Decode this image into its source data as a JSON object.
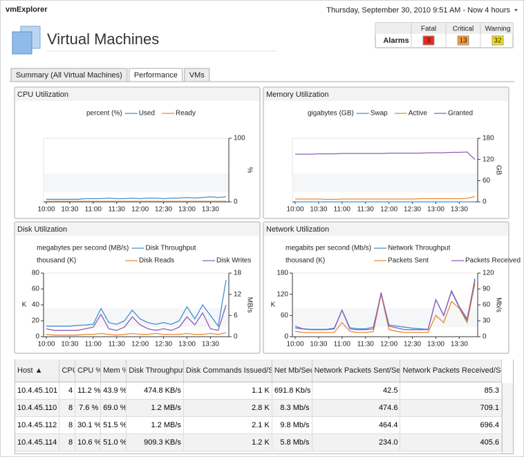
{
  "header": {
    "app": "vmExplorer",
    "timeframe": "Thursday, September 30, 2010 9:51 AM - Now 4 hours",
    "title": "Virtual Machines"
  },
  "alarms": {
    "label": "Alarms",
    "columns": [
      "Fatal",
      "Critical",
      "Warning"
    ],
    "values": [
      "3",
      "13",
      "32"
    ],
    "colors": [
      "#e8281e",
      "#f59a35",
      "#f5e00a"
    ]
  },
  "tabs": [
    "Summary (All Virtual Machines)",
    "Performance",
    "VMs"
  ],
  "chart_data": [
    {
      "type": "line",
      "title": "CPU Utilization",
      "y_label": "percent (%)",
      "y_axis_label": "%",
      "y_axis_side": "right",
      "categories": [
        "10:00",
        null,
        null,
        "10:30",
        null,
        null,
        "11:00",
        null,
        null,
        "11:30",
        null,
        null,
        "12:00",
        null,
        null,
        "12:30",
        null,
        null,
        "13:00",
        null,
        null,
        "13:30",
        null,
        null
      ],
      "ylim": [
        0,
        100
      ],
      "yticks": [
        0,
        100
      ],
      "series": [
        {
          "name": "Used",
          "color": "#3d8fd1",
          "values": [
            4,
            4,
            4,
            4,
            4,
            5,
            5,
            5,
            6,
            5,
            5,
            6,
            5,
            6,
            6,
            5,
            6,
            6,
            7,
            6,
            7,
            8,
            7,
            8
          ]
        },
        {
          "name": "Ready",
          "color": "#e8892f",
          "values": [
            1,
            1,
            1,
            1,
            1,
            1,
            1,
            1,
            1,
            1,
            1,
            1,
            1,
            1,
            1,
            1,
            1,
            1,
            1,
            1,
            1,
            1,
            1,
            1
          ]
        }
      ]
    },
    {
      "type": "line",
      "title": "Memory Utilization",
      "y_label": "gigabytes (GB)",
      "y_axis_label": "GB",
      "y_axis_side": "right",
      "categories": [
        "10:00",
        null,
        null,
        "10:30",
        null,
        null,
        "11:00",
        null,
        null,
        "11:30",
        null,
        null,
        "12:00",
        null,
        null,
        "12:30",
        null,
        null,
        "13:00",
        null,
        null,
        "13:30",
        null,
        null
      ],
      "ylim": [
        0,
        180
      ],
      "yticks": [
        0,
        60,
        120,
        180
      ],
      "series": [
        {
          "name": "Swap",
          "color": "#3d8fd1",
          "values": [
            0,
            0,
            0,
            0,
            0,
            0,
            0,
            0,
            0,
            0,
            0,
            0,
            0,
            0,
            0,
            0,
            0,
            0,
            0,
            0,
            0,
            0,
            0,
            0
          ]
        },
        {
          "name": "Active",
          "color": "#e8892f",
          "values": [
            8,
            8,
            8,
            8,
            7,
            7,
            8,
            8,
            8,
            8,
            8,
            8,
            8,
            8,
            8,
            8,
            9,
            9,
            9,
            9,
            9,
            9,
            10,
            15
          ]
        },
        {
          "name": "Granted",
          "color": "#8e5bb8",
          "values": [
            135,
            135,
            135,
            136,
            136,
            136,
            137,
            137,
            137,
            137,
            137,
            137,
            138,
            138,
            138,
            138,
            138,
            139,
            139,
            139,
            140,
            140,
            141,
            120
          ]
        }
      ]
    },
    {
      "type": "line",
      "title": "Disk Utilization",
      "y_label": "thousand (K)",
      "y2_label": "megabytes per second (MB/s)",
      "y_axis_label": "K",
      "y2_axis_label": "MB/s",
      "categories": [
        "10:00",
        null,
        null,
        "10:30",
        null,
        null,
        "11:00",
        null,
        null,
        "11:30",
        null,
        null,
        "12:00",
        null,
        null,
        "12:30",
        null,
        null,
        "13:00",
        null,
        null,
        "13:30",
        null,
        null
      ],
      "ylim": [
        0,
        80
      ],
      "yticks": [
        0,
        20,
        40,
        60,
        80
      ],
      "y2lim": [
        0,
        18
      ],
      "y2ticks": [
        0,
        6,
        12,
        18
      ],
      "series": [
        {
          "name": "Disk Throughput",
          "color": "#3d8fd1",
          "axis": "y2",
          "values": [
            3,
            3,
            3,
            3,
            3.2,
            3.3,
            3.5,
            8,
            4,
            3.5,
            4.5,
            7.5,
            5,
            4,
            3.5,
            4,
            3.5,
            4.5,
            8.5,
            5,
            9,
            6,
            3,
            16
          ]
        },
        {
          "name": "Disk Reads",
          "color": "#e8892f",
          "values": [
            3,
            2,
            2,
            2,
            2,
            3,
            3,
            4,
            3,
            2,
            3,
            4,
            3,
            3,
            4,
            3,
            3,
            3,
            4,
            3,
            3,
            4,
            3,
            5
          ]
        },
        {
          "name": "Disk Writes",
          "color": "#8e5bb8",
          "values": [
            10,
            8,
            8,
            8,
            8,
            10,
            12,
            28,
            10,
            8,
            12,
            25,
            15,
            10,
            8,
            10,
            8,
            12,
            25,
            15,
            30,
            10,
            8,
            40
          ]
        }
      ]
    },
    {
      "type": "line",
      "title": "Network Utilization",
      "y_label": "thousand (K)",
      "y2_label": "megabits per second (Mb/s)",
      "y_axis_label": "K",
      "y2_axis_label": "Mb/s",
      "categories": [
        "10:00",
        null,
        null,
        "10:30",
        null,
        null,
        "11:00",
        null,
        null,
        "11:30",
        null,
        null,
        "12:00",
        null,
        null,
        "12:30",
        null,
        null,
        "13:00",
        null,
        null,
        "13:30",
        null,
        null
      ],
      "ylim": [
        0,
        180
      ],
      "yticks": [
        0,
        60,
        120,
        180
      ],
      "y2lim": [
        0,
        120
      ],
      "y2ticks": [
        0,
        30,
        60,
        90,
        120
      ],
      "series": [
        {
          "name": "Network Throughput",
          "color": "#3d8fd1",
          "axis": "y2",
          "values": [
            20,
            15,
            14,
            14,
            14,
            16,
            50,
            17,
            15,
            15,
            18,
            80,
            22,
            20,
            18,
            16,
            15,
            14,
            70,
            40,
            85,
            55,
            30,
            110
          ]
        },
        {
          "name": "Packets Sent",
          "color": "#e8892f",
          "values": [
            15,
            12,
            12,
            12,
            12,
            12,
            40,
            15,
            12,
            12,
            14,
            120,
            20,
            15,
            12,
            12,
            12,
            12,
            60,
            40,
            100,
            80,
            40,
            150
          ]
        },
        {
          "name": "Packets Received",
          "color": "#8e5bb8",
          "values": [
            25,
            22,
            20,
            20,
            20,
            22,
            75,
            22,
            20,
            20,
            22,
            125,
            30,
            25,
            20,
            20,
            20,
            20,
            105,
            60,
            130,
            85,
            50,
            160
          ]
        }
      ]
    }
  ],
  "table": {
    "columns": [
      "Host ▲",
      "CPU #",
      "CPU %",
      "Mem %",
      "Disk Throughput",
      "Disk Commands Issued/Sec",
      "Net Mb/Sec",
      "Network Packets Sent/Sec",
      "Network Packets Received/Sec"
    ],
    "rows": [
      [
        "10.4.45.101",
        "4",
        "11.2 %",
        "43.9 %",
        "474.8 KB/s",
        "1.1 K",
        "691.8 Kb/s",
        "42.5",
        "85.3"
      ],
      [
        "10.4.45.110",
        "8",
        "7.6 %",
        "69.0 %",
        "1.2 MB/s",
        "2.8 K",
        "8.3 Mb/s",
        "474.6",
        "709.1"
      ],
      [
        "10.4.45.112",
        "8",
        "30.1 %",
        "51.5 %",
        "1.2 MB/s",
        "2.1 K",
        "9.8 Mb/s",
        "464.4",
        "696.4"
      ],
      [
        "10.4.45.114",
        "8",
        "10.6 %",
        "51.0 %",
        "909.3 KB/s",
        "1.2 K",
        "5.8 Mb/s",
        "234.0",
        "405.6"
      ]
    ]
  }
}
